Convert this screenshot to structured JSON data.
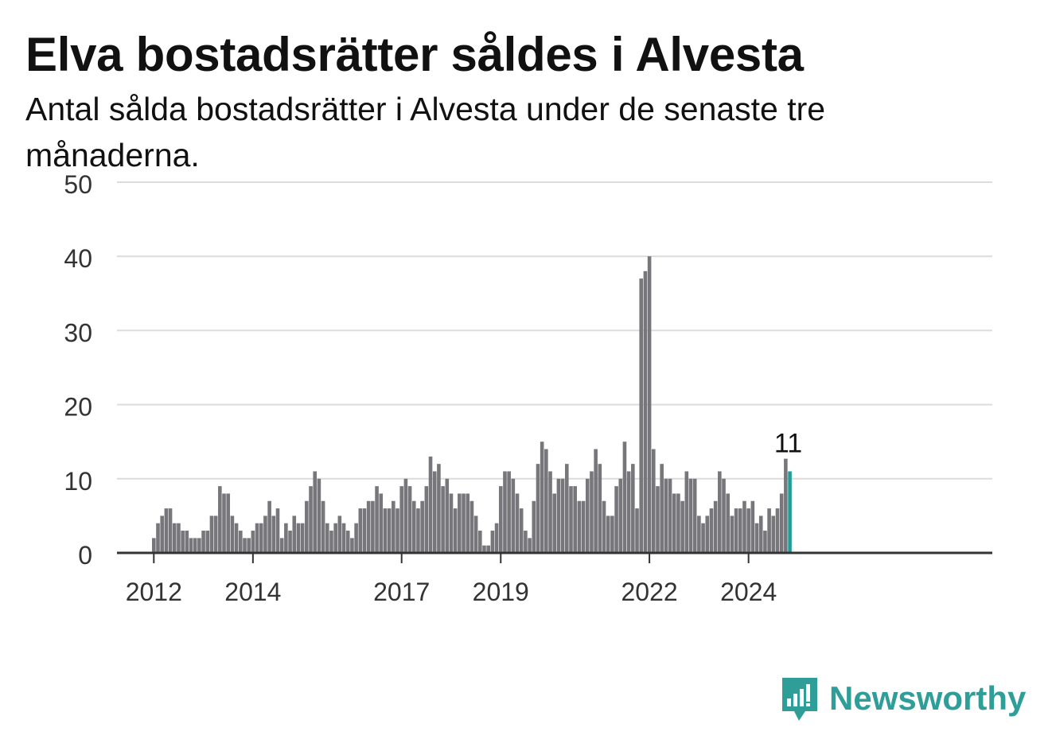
{
  "header": {
    "title": "Elva bostadsrätter såldes i Alvesta",
    "subtitle": "Antal sålda bostadsrätter i Alvesta under de senaste tre månaderna."
  },
  "brand": {
    "name": "Newsworthy",
    "icon": "newsworthy-logo-icon",
    "color": "#2f9e98"
  },
  "chart_data": {
    "type": "bar",
    "title": "Elva bostadsrätter såldes i Alvesta",
    "subtitle": "Antal sålda bostadsrätter i Alvesta under de senaste tre månaderna.",
    "xlabel": "",
    "ylabel": "",
    "ylim": [
      0,
      50
    ],
    "yticks": [
      0,
      10,
      20,
      30,
      40,
      50
    ],
    "grid": true,
    "x_ticks": [
      "2012",
      "2014",
      "2017",
      "2019",
      "2022",
      "2024"
    ],
    "x_tick_indices": [
      0,
      24,
      60,
      84,
      120,
      144
    ],
    "first_index": -2,
    "bar_color": "#77767a",
    "highlight_color": "#1f9e98",
    "highlight_label": "11",
    "values": [
      0,
      0,
      2,
      4,
      5,
      6,
      6,
      4,
      4,
      3,
      3,
      2,
      2,
      2,
      3,
      3,
      5,
      5,
      9,
      8,
      8,
      5,
      4,
      3,
      2,
      2,
      3,
      4,
      4,
      5,
      7,
      5,
      6,
      2,
      4,
      3,
      5,
      4,
      4,
      7,
      9,
      11,
      10,
      7,
      4,
      3,
      4,
      5,
      4,
      3,
      2,
      4,
      6,
      6,
      7,
      7,
      9,
      8,
      6,
      6,
      7,
      6,
      9,
      10,
      9,
      7,
      6,
      7,
      9,
      13,
      11,
      12,
      9,
      10,
      8,
      6,
      8,
      8,
      8,
      7,
      5,
      3,
      1,
      1,
      3,
      4,
      9,
      11,
      11,
      10,
      8,
      6,
      3,
      2,
      7,
      12,
      15,
      14,
      11,
      8,
      10,
      10,
      12,
      9,
      9,
      7,
      7,
      10,
      11,
      14,
      12,
      7,
      5,
      5,
      9,
      10,
      15,
      11,
      12,
      6,
      37,
      38,
      40,
      14,
      9,
      12,
      10,
      10,
      8,
      8,
      7,
      11,
      10,
      10,
      5,
      4,
      5,
      6,
      7,
      11,
      10,
      8,
      5,
      6,
      6,
      7,
      6,
      7,
      4,
      5,
      3,
      6,
      5,
      6,
      8,
      12.7,
      11
    ]
  }
}
